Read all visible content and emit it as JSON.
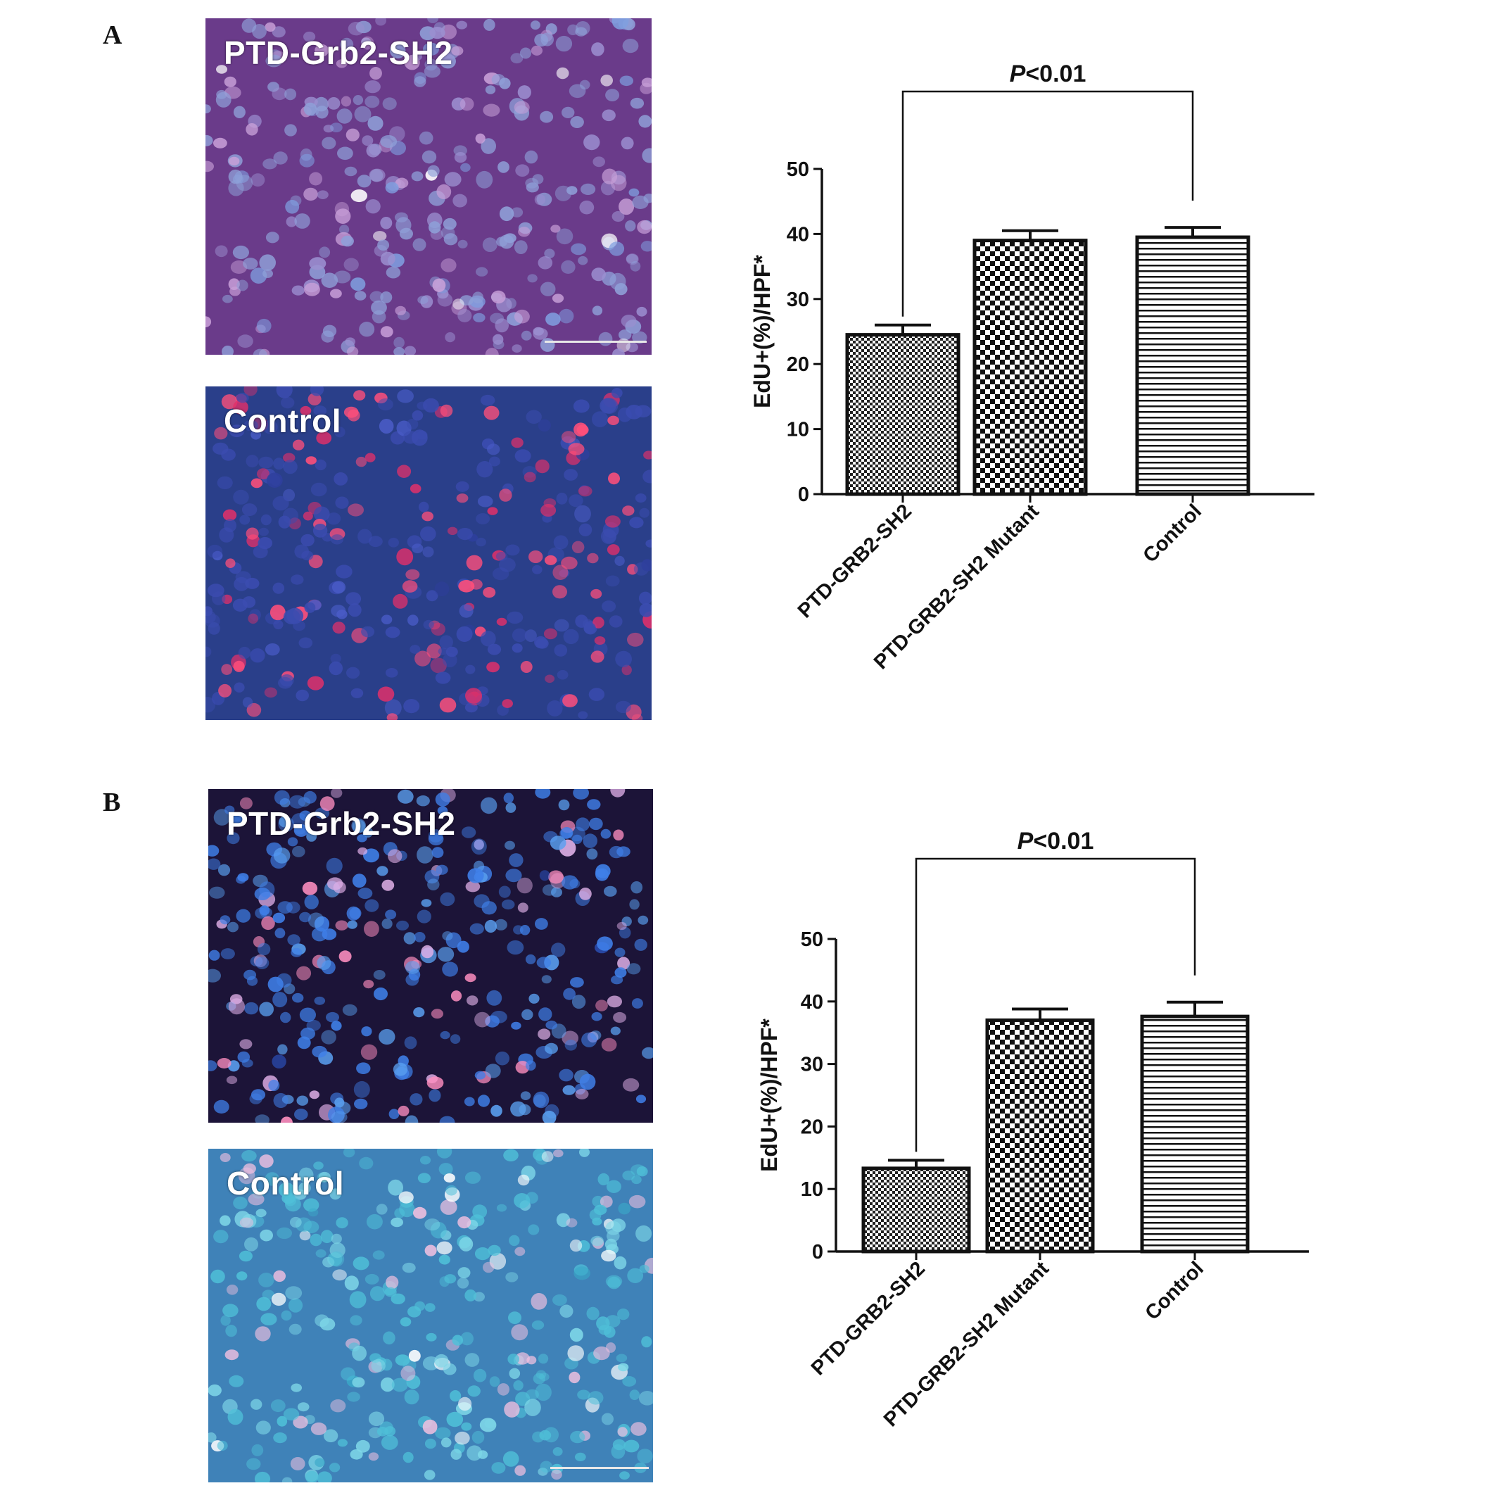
{
  "figure": {
    "panels": [
      {
        "letter": "A",
        "micrographs": [
          {
            "label": "PTD-Grb2-SH2",
            "tint": "#6a3b8a",
            "nucleus_colors": [
              "#8fa0d8",
              "#9b8fd0",
              "#c8a0d8",
              "#7f9fe0",
              "#ffffff"
            ],
            "scale_bar": true
          },
          {
            "label": "Control",
            "tint": "#2a3f8a",
            "nucleus_colors": [
              "#3b4cb0",
              "#ff4f7a",
              "#e0306a",
              "#4a5cc8",
              "#2f3f9e"
            ],
            "scale_bar": false
          }
        ]
      },
      {
        "letter": "B",
        "micrographs": [
          {
            "label": "PTD-Grb2-SH2",
            "tint": "#1c1438",
            "nucleus_colors": [
              "#3f7fe8",
              "#5aa0f0",
              "#e0b0e8",
              "#ff8fc0",
              "#2f5fd8"
            ],
            "scale_bar": false
          },
          {
            "label": "Control",
            "tint": "#3f82b8",
            "nucleus_colors": [
              "#4fc0d8",
              "#7fd8e8",
              "#f0c0e0",
              "#ffffff",
              "#3aa8c8"
            ],
            "scale_bar": true
          }
        ]
      }
    ]
  },
  "chart_data": [
    {
      "type": "bar",
      "panel": "A",
      "categories": [
        "PTD-GRB2-SH2",
        "PTD-GRB2-SH2 Mutant",
        "Control"
      ],
      "values": [
        24.5,
        39.0,
        39.5
      ],
      "errors": [
        1.5,
        1.5,
        1.5
      ],
      "patterns": [
        "fine-checker",
        "checker",
        "horizontal-lines"
      ],
      "ylabel": "EdU+(%)/HPF*",
      "ylim": [
        0,
        50
      ],
      "yticks": [
        0,
        10,
        20,
        30,
        40,
        50
      ],
      "significance": {
        "from": 0,
        "to": 2,
        "p_prefix": "P",
        "p_suffix": "<0.01"
      }
    },
    {
      "type": "bar",
      "panel": "B",
      "categories": [
        "PTD-GRB2-SH2",
        "PTD-GRB2-SH2 Mutant",
        "Control"
      ],
      "values": [
        13.3,
        37.0,
        37.6
      ],
      "errors": [
        1.3,
        1.8,
        2.3
      ],
      "patterns": [
        "fine-checker",
        "checker",
        "horizontal-lines"
      ],
      "ylabel": "EdU+(%)/HPF*",
      "ylim": [
        0,
        50
      ],
      "yticks": [
        0,
        10,
        20,
        30,
        40,
        50
      ],
      "significance": {
        "from": 0,
        "to": 2,
        "p_prefix": "P",
        "p_suffix": "<0.01"
      }
    }
  ]
}
